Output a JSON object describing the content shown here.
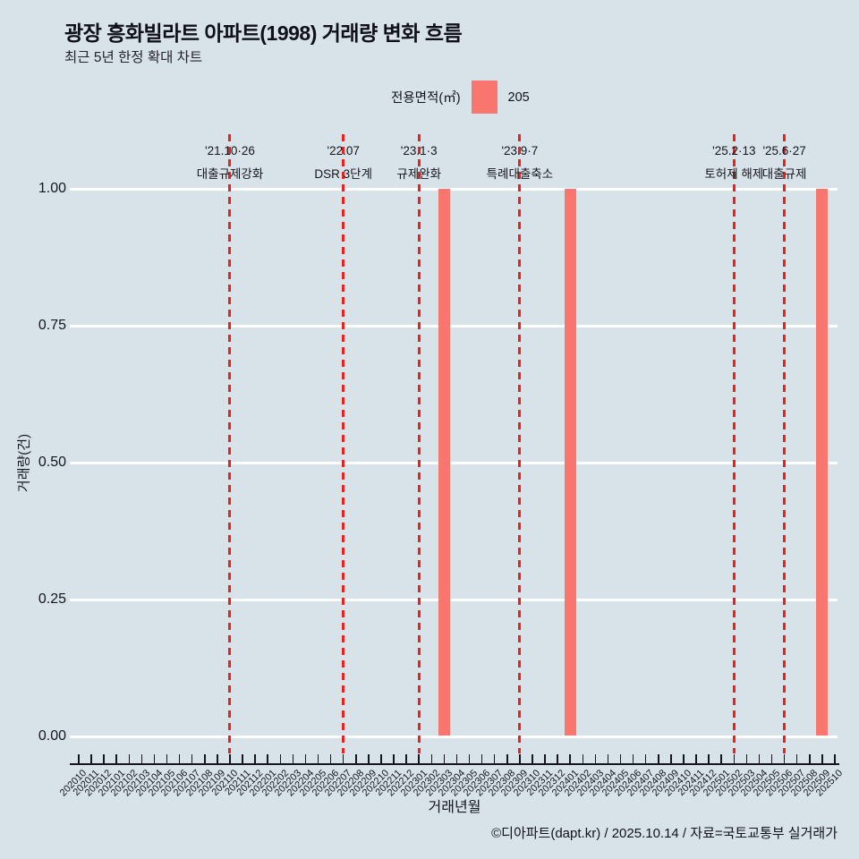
{
  "header": {
    "title": "광장 흥화빌라트 아파트(1998) 거래량 변화 흐름",
    "subtitle": "최근 5년 한정 확대 차트"
  },
  "legend": {
    "label": "전용면적(㎡)",
    "series_value": "205",
    "swatch_color": "#f8766d"
  },
  "chart_data": {
    "type": "bar",
    "title": "광장 흥화빌라트 아파트(1998) 거래량 변화 흐름",
    "xlabel": "거래년월",
    "ylabel": "거래량(건)",
    "ylim": [
      0,
      1
    ],
    "yticks": [
      0,
      0.25,
      0.5,
      0.75,
      1
    ],
    "ytick_labels": [
      "0.00",
      "0.25",
      "0.50",
      "0.75",
      "1.00"
    ],
    "grid": "horizontal-white",
    "legend_position": "top-center",
    "categories": [
      "202010",
      "202011",
      "202012",
      "202101",
      "202102",
      "202103",
      "202104",
      "202105",
      "202106",
      "202107",
      "202108",
      "202109",
      "202110",
      "202111",
      "202112",
      "202201",
      "202202",
      "202203",
      "202204",
      "202205",
      "202206",
      "202207",
      "202208",
      "202209",
      "202210",
      "202211",
      "202212",
      "202301",
      "202302",
      "202303",
      "202304",
      "202305",
      "202306",
      "202307",
      "202308",
      "202309",
      "202310",
      "202311",
      "202312",
      "202401",
      "202402",
      "202403",
      "202404",
      "202405",
      "202406",
      "202407",
      "202408",
      "202409",
      "202410",
      "202411",
      "202412",
      "202501",
      "202502",
      "202503",
      "202504",
      "202505",
      "202506",
      "202507",
      "202508",
      "202509",
      "202510"
    ],
    "series": [
      {
        "name": "205",
        "color": "#f8766d",
        "values": [
          0,
          0,
          0,
          0,
          0,
          0,
          0,
          0,
          0,
          0,
          0,
          0,
          0,
          0,
          0,
          0,
          0,
          0,
          0,
          0,
          0,
          0,
          0,
          0,
          0,
          0,
          0,
          0,
          0,
          1,
          0,
          0,
          0,
          0,
          0,
          0,
          0,
          0,
          0,
          1,
          0,
          0,
          0,
          0,
          0,
          0,
          0,
          0,
          0,
          0,
          0,
          0,
          0,
          0,
          0,
          0,
          0,
          0,
          0,
          1,
          0
        ]
      }
    ],
    "events": [
      {
        "month": "202110",
        "date": "'21.10·26",
        "label": "대출규제강화",
        "line_color": "#e8231d"
      },
      {
        "month": "202207",
        "date": "'22.07",
        "label": "DSR 3단계",
        "line_color": "#e8231d"
      },
      {
        "month": "202301",
        "date": "'23.1·3",
        "label": "규제완화",
        "line_color": "#e8231d"
      },
      {
        "month": "202309",
        "date": "'23.9·7",
        "label": "특례대출축소",
        "line_color": "#e8231d"
      },
      {
        "month": "202502",
        "date": "'25.2·13",
        "label": "토허제 해제",
        "line_color": "#e8231d"
      },
      {
        "month": "202506",
        "date": "'25.6·27",
        "label": "대출규제",
        "line_color": "#e8231d"
      }
    ]
  },
  "footer": {
    "credit": "©디아파트(dapt.kr) / 2025.10.14 / 자료=국토교통부 실거래가"
  }
}
